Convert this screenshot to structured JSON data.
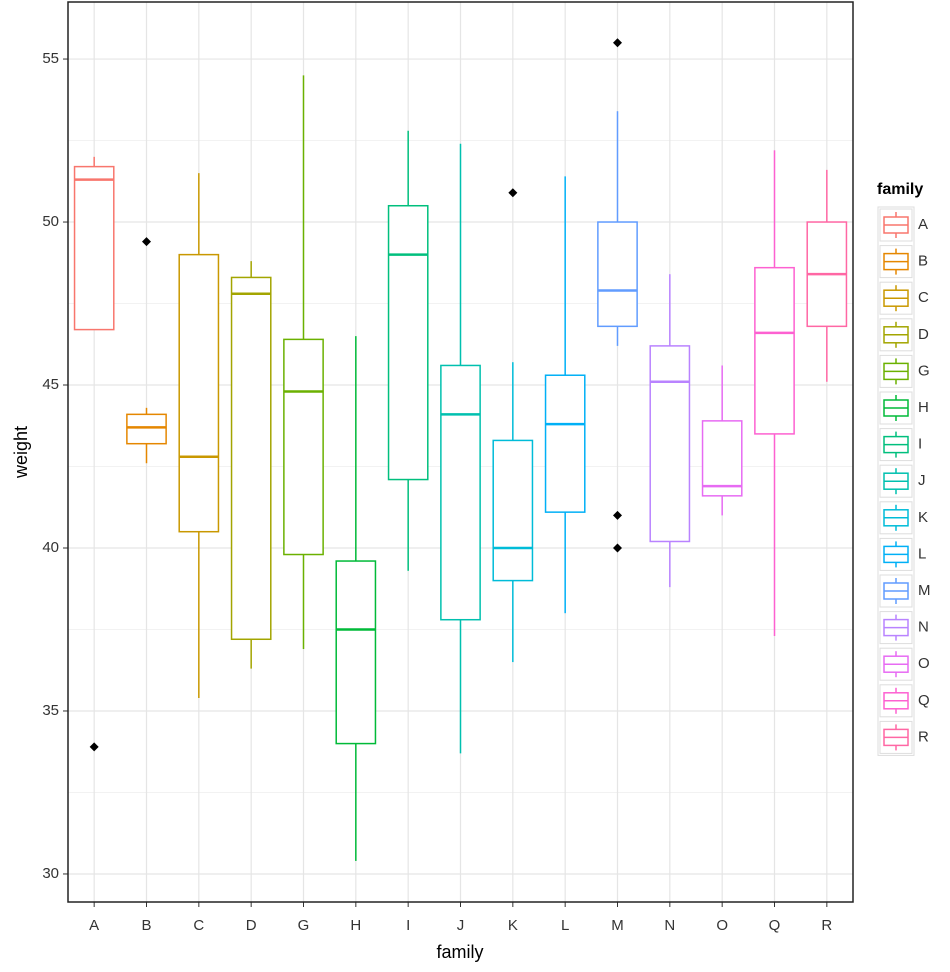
{
  "chart_data": {
    "type": "box",
    "x_label": "family",
    "y_label": "weight",
    "legend_title": "family",
    "legend_position": "right",
    "grid": true,
    "categories": [
      "A",
      "B",
      "C",
      "D",
      "G",
      "H",
      "I",
      "J",
      "K",
      "L",
      "M",
      "N",
      "O",
      "Q",
      "R"
    ],
    "colors": [
      "#F8766D",
      "#E58700",
      "#C99800",
      "#A3A500",
      "#6BB100",
      "#00BA38",
      "#00BF7D",
      "#00C0AF",
      "#00BCD8",
      "#00B0F6",
      "#619CFF",
      "#B983FF",
      "#E76BF3",
      "#FD61D1",
      "#FF67A4"
    ],
    "boxes": [
      {
        "whisker_low": 46.7,
        "q1": 46.7,
        "median": 51.3,
        "q3": 51.7,
        "whisker_high": 52.0,
        "outliers": [
          33.9
        ]
      },
      {
        "whisker_low": 42.6,
        "q1": 43.2,
        "median": 43.7,
        "q3": 44.1,
        "whisker_high": 44.3,
        "outliers": [
          49.4
        ]
      },
      {
        "whisker_low": 35.4,
        "q1": 40.5,
        "median": 42.8,
        "q3": 49.0,
        "whisker_high": 51.5,
        "outliers": []
      },
      {
        "whisker_low": 36.3,
        "q1": 37.2,
        "median": 47.8,
        "q3": 48.3,
        "whisker_high": 48.8,
        "outliers": []
      },
      {
        "whisker_low": 36.9,
        "q1": 39.8,
        "median": 44.8,
        "q3": 46.4,
        "whisker_high": 54.5,
        "outliers": []
      },
      {
        "whisker_low": 30.4,
        "q1": 34.0,
        "median": 37.5,
        "q3": 39.6,
        "whisker_high": 46.5,
        "outliers": []
      },
      {
        "whisker_low": 39.3,
        "q1": 42.1,
        "median": 49.0,
        "q3": 50.5,
        "whisker_high": 52.8,
        "outliers": []
      },
      {
        "whisker_low": 33.7,
        "q1": 37.8,
        "median": 44.1,
        "q3": 45.6,
        "whisker_high": 52.4,
        "outliers": []
      },
      {
        "whisker_low": 36.5,
        "q1": 39.0,
        "median": 40.0,
        "q3": 43.3,
        "whisker_high": 45.7,
        "outliers": [
          50.9
        ]
      },
      {
        "whisker_low": 38.0,
        "q1": 41.1,
        "median": 43.8,
        "q3": 45.3,
        "whisker_high": 51.4,
        "outliers": []
      },
      {
        "whisker_low": 46.2,
        "q1": 46.8,
        "median": 47.9,
        "q3": 50.0,
        "whisker_high": 53.4,
        "outliers": [
          55.5,
          41.0,
          40.0
        ]
      },
      {
        "whisker_low": 38.8,
        "q1": 40.2,
        "median": 45.1,
        "q3": 46.2,
        "whisker_high": 48.4,
        "outliers": []
      },
      {
        "whisker_low": 41.0,
        "q1": 41.6,
        "median": 41.9,
        "q3": 43.9,
        "whisker_high": 45.6,
        "outliers": []
      },
      {
        "whisker_low": 37.3,
        "q1": 43.5,
        "median": 46.6,
        "q3": 48.6,
        "whisker_high": 52.2,
        "outliers": []
      },
      {
        "whisker_low": 45.1,
        "q1": 46.8,
        "median": 48.4,
        "q3": 50.0,
        "whisker_high": 51.6,
        "outliers": []
      }
    ],
    "ylim": [
      29.14,
      56.75
    ],
    "yticks": [
      30,
      35,
      40,
      45,
      50,
      55
    ],
    "y_minor_ticks": [
      32.5,
      37.5,
      42.5,
      47.5,
      52.5
    ]
  }
}
